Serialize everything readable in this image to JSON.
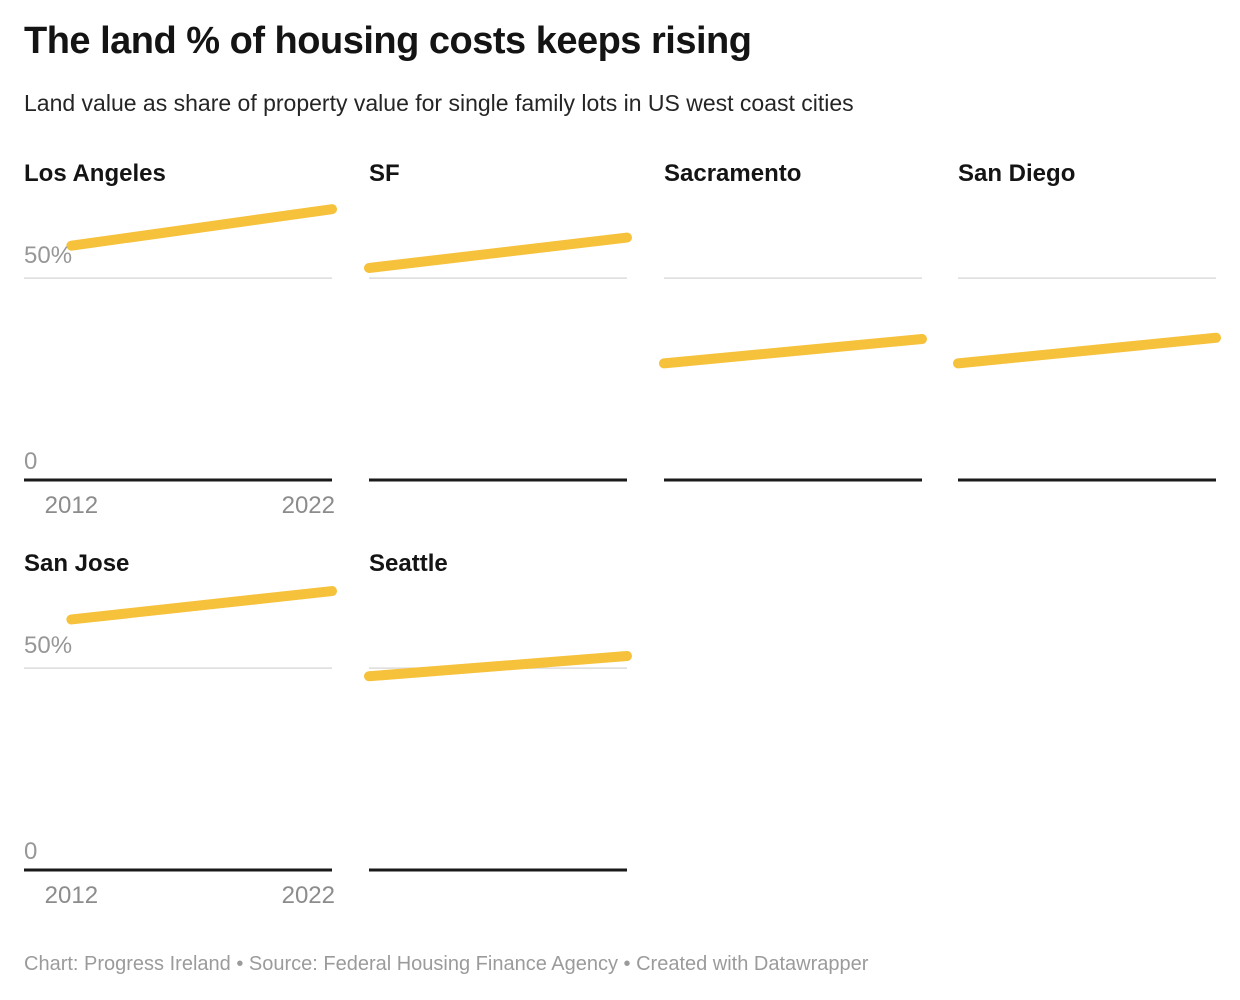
{
  "header": {
    "title": "The land % of housing costs keeps rising",
    "subtitle": "Land value as share of property value for single family lots in US west coast cities"
  },
  "footer": {
    "attribution": "Chart: Progress Ireland • Source: Federal Housing Finance Agency • Created with Datawrapper"
  },
  "chart_data": {
    "type": "line",
    "title": "The land % of housing costs keeps rising",
    "subtitle": "Land value as share of property value for single family lots in US west coast cities",
    "layout": "small-multiples, 4 columns x 2 rows, axis labels on first column only",
    "x_domain": [
      2010,
      2023
    ],
    "ylim": [
      0,
      70
    ],
    "grid": "single gridline at 50% plus zero baseline",
    "y_ticks": [
      {
        "value": 50,
        "label": "50%"
      },
      {
        "value": 0,
        "label": "0"
      }
    ],
    "x_ticks": [
      {
        "year": 2012,
        "label": "2012"
      },
      {
        "year": 2022,
        "label": "2022"
      }
    ],
    "line_color": "#F6C13B",
    "gridline_color": "#dcdcdc",
    "baseline_color": "#1a1a1a",
    "series": [
      {
        "name": "Los Angeles",
        "x": [
          2012,
          2023
        ],
        "values": [
          58,
          67
        ]
      },
      {
        "name": "SF",
        "x": [
          2010,
          2023
        ],
        "values": [
          52.5,
          60
        ]
      },
      {
        "name": "Sacramento",
        "x": [
          2010,
          2023
        ],
        "values": [
          29,
          35
        ]
      },
      {
        "name": "San Diego",
        "x": [
          2010,
          2023
        ],
        "values": [
          29,
          35.3
        ]
      },
      {
        "name": "San Jose",
        "x": [
          2012,
          2023
        ],
        "values": [
          62,
          69
        ]
      },
      {
        "name": "Seattle",
        "x": [
          2010,
          2023
        ],
        "values": [
          48,
          53
        ]
      }
    ]
  }
}
